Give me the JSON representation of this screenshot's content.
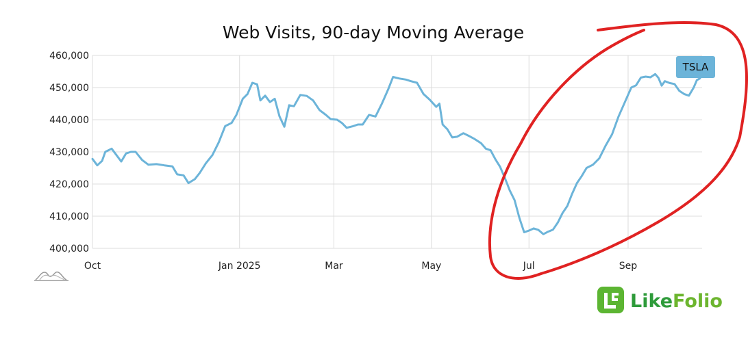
{
  "chart_data": {
    "type": "line",
    "title": "Web Visits, 90-day Moving Average",
    "xlabel": "",
    "ylabel": "",
    "x_tick_labels": [
      "Oct",
      "Jan 2025",
      "Mar",
      "May",
      "Jul",
      "Sep"
    ],
    "ylim": [
      400000,
      460000
    ],
    "y_ticks": [
      400000,
      410000,
      420000,
      430000,
      440000,
      450000,
      460000
    ],
    "y_tick_labels": [
      "400,000",
      "410,000",
      "420,000",
      "430,000",
      "440,000",
      "450,000",
      "460,000"
    ],
    "grid": true,
    "legend": "top-right",
    "series": [
      {
        "name": "TSLA",
        "color": "#6cb4d9",
        "points": [
          [
            "2024-10-01",
            427800
          ],
          [
            "2024-10-04",
            425800
          ],
          [
            "2024-10-07",
            427200
          ],
          [
            "2024-10-09",
            430000
          ],
          [
            "2024-10-13",
            431000
          ],
          [
            "2024-10-16",
            429000
          ],
          [
            "2024-10-19",
            427000
          ],
          [
            "2024-10-22",
            429500
          ],
          [
            "2024-10-25",
            430000
          ],
          [
            "2024-10-28",
            430000
          ],
          [
            "2024-11-01",
            427500
          ],
          [
            "2024-11-05",
            426000
          ],
          [
            "2024-11-10",
            426200
          ],
          [
            "2024-11-15",
            425800
          ],
          [
            "2024-11-20",
            425500
          ],
          [
            "2024-11-23",
            423000
          ],
          [
            "2024-11-27",
            422700
          ],
          [
            "2024-11-30",
            420300
          ],
          [
            "2024-12-04",
            421500
          ],
          [
            "2024-12-07",
            423400
          ],
          [
            "2024-12-11",
            426500
          ],
          [
            "2024-12-15",
            429000
          ],
          [
            "2024-12-19",
            433000
          ],
          [
            "2024-12-23",
            438000
          ],
          [
            "2024-12-27",
            439000
          ],
          [
            "2024-12-30",
            441500
          ],
          [
            "2025-01-03",
            446500
          ],
          [
            "2025-01-06",
            448000
          ],
          [
            "2025-01-09",
            451500
          ],
          [
            "2025-01-12",
            451000
          ],
          [
            "2025-01-14",
            446000
          ],
          [
            "2025-01-17",
            447500
          ],
          [
            "2025-01-20",
            445500
          ],
          [
            "2025-01-23",
            446500
          ],
          [
            "2025-01-26",
            441000
          ],
          [
            "2025-01-29",
            437800
          ],
          [
            "2025-02-01",
            444500
          ],
          [
            "2025-02-04",
            444200
          ],
          [
            "2025-02-08",
            447700
          ],
          [
            "2025-02-12",
            447400
          ],
          [
            "2025-02-16",
            446000
          ],
          [
            "2025-02-20",
            443000
          ],
          [
            "2025-02-24",
            441500
          ],
          [
            "2025-02-27",
            440200
          ],
          [
            "2025-03-03",
            440000
          ],
          [
            "2025-03-06",
            439000
          ],
          [
            "2025-03-09",
            437500
          ],
          [
            "2025-03-13",
            438000
          ],
          [
            "2025-03-16",
            438500
          ],
          [
            "2025-03-19",
            438500
          ],
          [
            "2025-03-23",
            441500
          ],
          [
            "2025-03-27",
            441000
          ],
          [
            "2025-03-31",
            445000
          ],
          [
            "2025-04-04",
            449500
          ],
          [
            "2025-04-07",
            453300
          ],
          [
            "2025-04-11",
            452800
          ],
          [
            "2025-04-15",
            452500
          ],
          [
            "2025-04-18",
            452000
          ],
          [
            "2025-04-22",
            451500
          ],
          [
            "2025-04-26",
            448000
          ],
          [
            "2025-04-30",
            446200
          ],
          [
            "2025-05-04",
            444000
          ],
          [
            "2025-05-06",
            445000
          ],
          [
            "2025-05-08",
            438500
          ],
          [
            "2025-05-11",
            437000
          ],
          [
            "2025-05-14",
            434500
          ],
          [
            "2025-05-17",
            434700
          ],
          [
            "2025-05-21",
            435800
          ],
          [
            "2025-05-25",
            434800
          ],
          [
            "2025-05-28",
            434000
          ],
          [
            "2025-06-01",
            432700
          ],
          [
            "2025-06-04",
            431000
          ],
          [
            "2025-06-07",
            430500
          ],
          [
            "2025-06-10",
            427700
          ],
          [
            "2025-06-13",
            425300
          ],
          [
            "2025-06-16",
            421800
          ],
          [
            "2025-06-19",
            418000
          ],
          [
            "2025-06-22",
            415000
          ],
          [
            "2025-06-25",
            409500
          ],
          [
            "2025-06-28",
            405000
          ],
          [
            "2025-07-01",
            405500
          ],
          [
            "2025-07-04",
            406200
          ],
          [
            "2025-07-07",
            405700
          ],
          [
            "2025-07-10",
            404400
          ],
          [
            "2025-07-13",
            405200
          ],
          [
            "2025-07-16",
            405800
          ],
          [
            "2025-07-19",
            408000
          ],
          [
            "2025-07-22",
            411000
          ],
          [
            "2025-07-25",
            413200
          ],
          [
            "2025-07-28",
            417000
          ],
          [
            "2025-07-31",
            420300
          ],
          [
            "2025-08-03",
            422500
          ],
          [
            "2025-08-06",
            425000
          ],
          [
            "2025-08-10",
            426000
          ],
          [
            "2025-08-14",
            428000
          ],
          [
            "2025-08-18",
            432000
          ],
          [
            "2025-08-22",
            435500
          ],
          [
            "2025-08-26",
            441000
          ],
          [
            "2025-08-30",
            445500
          ],
          [
            "2025-09-03",
            450000
          ],
          [
            "2025-09-06",
            450700
          ],
          [
            "2025-09-09",
            453100
          ],
          [
            "2025-09-12",
            453400
          ],
          [
            "2025-09-15",
            453200
          ],
          [
            "2025-09-18",
            454200
          ],
          [
            "2025-09-20",
            453000
          ],
          [
            "2025-09-22",
            450600
          ],
          [
            "2025-09-24",
            452000
          ],
          [
            "2025-09-27",
            451400
          ],
          [
            "2025-09-30",
            451100
          ],
          [
            "2025-10-03",
            449000
          ],
          [
            "2025-10-06",
            448000
          ],
          [
            "2025-10-09",
            447500
          ],
          [
            "2025-10-12",
            450000
          ],
          [
            "2025-10-14",
            452300
          ],
          [
            "2025-10-16",
            452900
          ]
        ]
      }
    ]
  },
  "brand": {
    "logo_text": "LikeFolio",
    "like_color": "#2e9b3a",
    "folio_color": "#6cb52e",
    "logo_icon": "likefolio-logo-icon"
  },
  "annotation": {
    "shape": "hand-drawn-ellipse",
    "color": "#e02222"
  },
  "watermark_icon": "mountain-chart-icon"
}
